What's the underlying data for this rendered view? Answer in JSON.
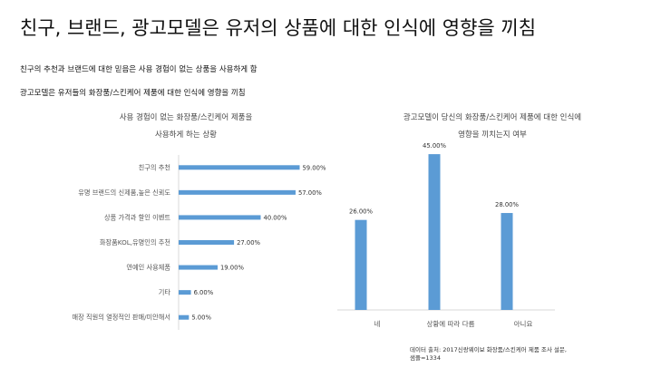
{
  "title": "친구, 브랜드, 광고모델은 유저의 상품에 대한 인식에 영향을 끼침",
  "subtitle_lines": [
    "친구의 추천과 브랜드에 대한 믿음은 사용 경험이 없는 상품을 사용하게 함",
    "광고모델은 유저들의 화장품/스킨케어 제품에 대한 인식에 영향을 끼침"
  ],
  "source": {
    "line1": "데이터 출처: 2017신랑웨이보 화장품/스킨케어 제품 조사 설문,",
    "line2": "샘플=1334"
  },
  "colors": {
    "bar": "#5b9bd5",
    "axis": "#d9d9d9"
  },
  "chart_data": [
    {
      "type": "bar",
      "orientation": "horizontal",
      "title_lines": [
        "사용 경험이 없는 화장품/스킨케어 제품을",
        "사용하게 하는 상황"
      ],
      "categories": [
        "친구의 추천",
        "유명 브랜드의 신제품,높은 신뢰도",
        "상품 가격과 할인 이벤트",
        "화장품KOL,유명인의 추천",
        "연예인 사용제품",
        "기타",
        "매장 직원의 열정적인 판매/미안해서"
      ],
      "values": [
        59.0,
        57.0,
        40.0,
        27.0,
        19.0,
        6.0,
        5.0
      ],
      "value_labels": [
        "59.00%",
        "57.00%",
        "40.00%",
        "27.00%",
        "19.00%",
        "6.00%",
        "5.00%"
      ],
      "unit": "%",
      "xlim": [
        0,
        80
      ],
      "grid": false
    },
    {
      "type": "bar",
      "orientation": "vertical",
      "title_lines": [
        "광고모델이 당신의 화장품/스킨케어 제품에 대한 인식에",
        "영향을 끼치는지 여부"
      ],
      "categories": [
        "네",
        "상황에 따라 다름",
        "아니요"
      ],
      "values": [
        26.0,
        45.0,
        28.0
      ],
      "value_labels": [
        "26.00%",
        "45.00%",
        "28.00%"
      ],
      "unit": "%",
      "ylim": [
        0,
        50
      ],
      "grid": false
    }
  ]
}
